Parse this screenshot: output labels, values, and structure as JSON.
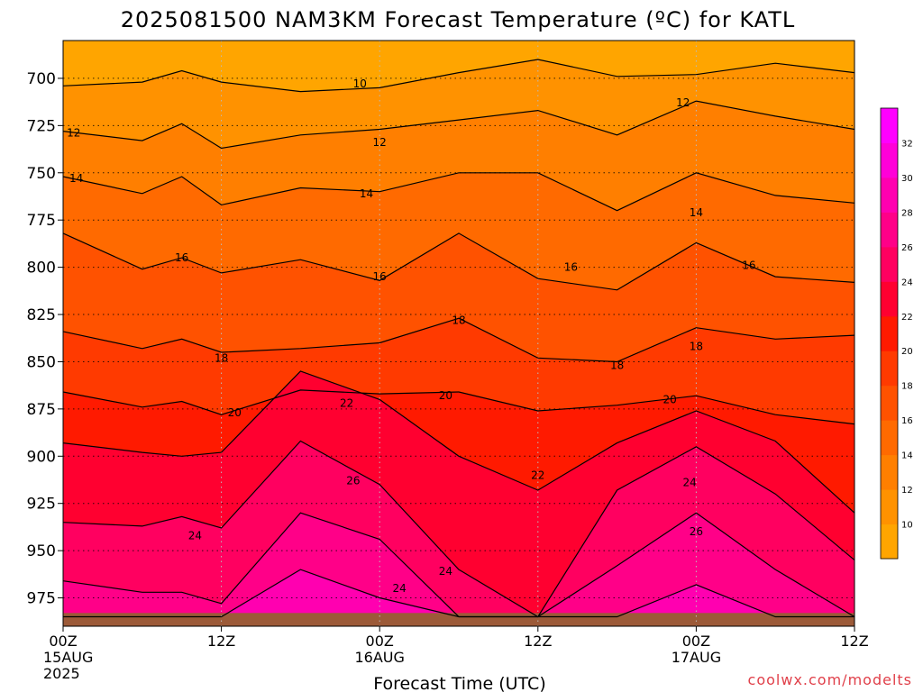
{
  "chart_data": {
    "type": "heatmap",
    "title": "2025081500 NAM3KM Forecast Temperature (ºC) for KATL",
    "xlabel": "Forecast Time (UTC)",
    "ylabel": "",
    "credit": "coolwx.com/modelts",
    "y_scale": "pressure (hPa), inverted",
    "x_ticks": [
      {
        "hour": 0,
        "line1": "00Z",
        "line2": "15AUG",
        "line3": "2025"
      },
      {
        "hour": 12,
        "line1": "12Z",
        "line2": "",
        "line3": ""
      },
      {
        "hour": 24,
        "line1": "00Z",
        "line2": "16AUG",
        "line3": ""
      },
      {
        "hour": 36,
        "line1": "12Z",
        "line2": "",
        "line3": ""
      },
      {
        "hour": 48,
        "line1": "00Z",
        "line2": "17AUG",
        "line3": ""
      },
      {
        "hour": 60,
        "line1": "12Z",
        "line2": "",
        "line3": ""
      }
    ],
    "xlim_hours": [
      0,
      60
    ],
    "y_ticks": [
      700,
      725,
      750,
      775,
      800,
      825,
      850,
      875,
      900,
      925,
      950,
      975
    ],
    "ylim": [
      680,
      990
    ],
    "grid": true,
    "colorbar": {
      "labels": [
        10,
        12,
        14,
        16,
        18,
        20,
        22,
        24,
        26,
        28,
        30,
        32
      ],
      "colors": [
        "#ffa500",
        "#ff9200",
        "#ff7f00",
        "#ff6a00",
        "#ff5200",
        "#ff3a00",
        "#ff1a00",
        "#ff0030",
        "#ff0060",
        "#ff0088",
        "#ff00b0",
        "#ff00d8",
        "#ff00ff"
      ]
    },
    "contours": [
      {
        "value": 10,
        "x": [
          0,
          6,
          9,
          12,
          18,
          24,
          30,
          36,
          42,
          48,
          54,
          60
        ],
        "y": [
          704,
          702,
          696,
          702,
          707,
          705,
          697,
          690,
          699,
          698,
          692,
          697
        ]
      },
      {
        "value": 12,
        "x": [
          0,
          6,
          9,
          12,
          18,
          24,
          30,
          36,
          42,
          48,
          54,
          60
        ],
        "y": [
          728,
          733,
          724,
          737,
          730,
          727,
          722,
          717,
          730,
          712,
          720,
          727
        ]
      },
      {
        "value": 14,
        "x": [
          0,
          6,
          9,
          12,
          18,
          24,
          30,
          36,
          42,
          48,
          54,
          60
        ],
        "y": [
          752,
          761,
          752,
          767,
          758,
          760,
          750,
          750,
          770,
          750,
          762,
          766
        ]
      },
      {
        "value": 16,
        "x": [
          0,
          6,
          9,
          12,
          18,
          24,
          30,
          36,
          42,
          48,
          54,
          60
        ],
        "y": [
          782,
          801,
          795,
          803,
          796,
          807,
          782,
          806,
          812,
          787,
          805,
          808
        ]
      },
      {
        "value": 18,
        "x": [
          0,
          6,
          9,
          12,
          18,
          24,
          30,
          36,
          42,
          48,
          54,
          60
        ],
        "y": [
          834,
          843,
          838,
          845,
          843,
          840,
          827,
          848,
          850,
          832,
          838,
          836
        ]
      },
      {
        "value": 20,
        "x": [
          0,
          6,
          9,
          12,
          18,
          24,
          30,
          36,
          42,
          48,
          54,
          60
        ],
        "y": [
          866,
          874,
          871,
          878,
          865,
          867,
          866,
          876,
          873,
          868,
          878,
          883
        ]
      },
      {
        "value": 22,
        "x": [
          0,
          6,
          9,
          12,
          18,
          24,
          30,
          36,
          42,
          48,
          54,
          60
        ],
        "y": [
          893,
          898,
          900,
          898,
          855,
          870,
          900,
          918,
          893,
          876,
          892,
          930
        ]
      },
      {
        "value": 24,
        "x": [
          0,
          6,
          9,
          12,
          18,
          24,
          30,
          36,
          42,
          48,
          54,
          60
        ],
        "y": [
          935,
          937,
          932,
          938,
          892,
          915,
          960,
          985,
          918,
          895,
          920,
          955
        ]
      },
      {
        "value": 26,
        "x": [
          0,
          6,
          9,
          12,
          18,
          24,
          30,
          36,
          42,
          48,
          54,
          60
        ],
        "y": [
          966,
          972,
          972,
          978,
          930,
          944,
          985,
          985,
          958,
          930,
          960,
          985
        ]
      },
      {
        "value": 28,
        "x": [
          0,
          6,
          9,
          12,
          18,
          24,
          30,
          36,
          42,
          48,
          54,
          60
        ],
        "y": [
          985,
          985,
          985,
          985,
          960,
          975,
          985,
          985,
          985,
          968,
          985,
          985
        ]
      }
    ],
    "contour_labels": [
      {
        "text": "10",
        "hour": 22.5,
        "p": 703
      },
      {
        "text": "12",
        "hour": 0.8,
        "p": 729
      },
      {
        "text": "12",
        "hour": 24,
        "p": 734
      },
      {
        "text": "12",
        "hour": 47,
        "p": 713
      },
      {
        "text": "14",
        "hour": 1,
        "p": 753
      },
      {
        "text": "14",
        "hour": 23,
        "p": 761
      },
      {
        "text": "14",
        "hour": 48,
        "p": 771
      },
      {
        "text": "16",
        "hour": 9,
        "p": 795
      },
      {
        "text": "16",
        "hour": 24,
        "p": 805
      },
      {
        "text": "16",
        "hour": 38.5,
        "p": 800
      },
      {
        "text": "16",
        "hour": 52,
        "p": 799
      },
      {
        "text": "18",
        "hour": 12,
        "p": 848
      },
      {
        "text": "18",
        "hour": 30,
        "p": 828
      },
      {
        "text": "18",
        "hour": 42,
        "p": 852
      },
      {
        "text": "18",
        "hour": 48,
        "p": 842
      },
      {
        "text": "20",
        "hour": 13,
        "p": 877
      },
      {
        "text": "20",
        "hour": 29,
        "p": 868
      },
      {
        "text": "20",
        "hour": 46,
        "p": 870
      },
      {
        "text": "22",
        "hour": 21.5,
        "p": 872
      },
      {
        "text": "22",
        "hour": 36,
        "p": 910
      },
      {
        "text": "24",
        "hour": 10,
        "p": 942
      },
      {
        "text": "24",
        "hour": 29,
        "p": 961
      },
      {
        "text": "24",
        "hour": 25.5,
        "p": 970
      },
      {
        "text": "24",
        "hour": 47.5,
        "p": 914
      },
      {
        "text": "26",
        "hour": 22,
        "p": 913
      },
      {
        "text": "26",
        "hour": 48,
        "p": 940
      }
    ]
  }
}
